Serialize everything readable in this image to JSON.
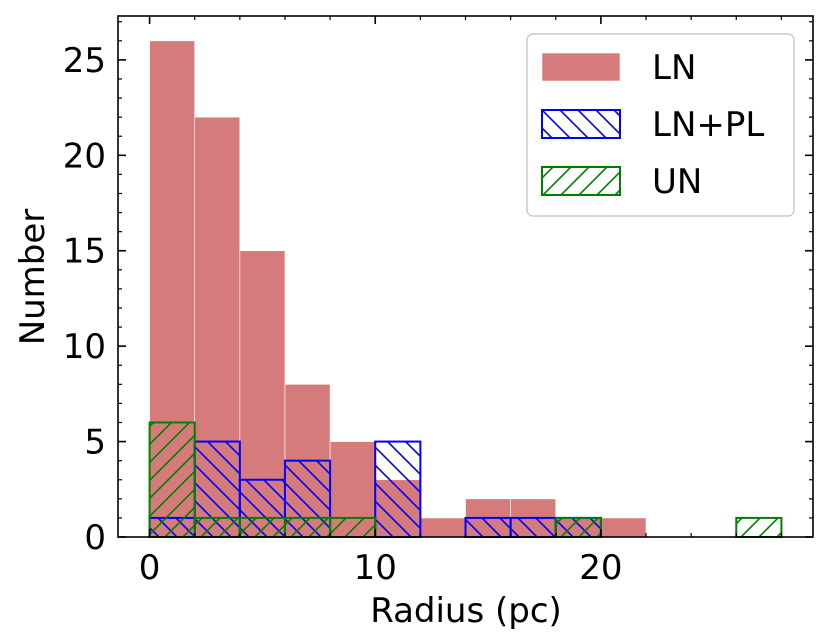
{
  "chart_data": {
    "type": "bar",
    "title": "",
    "xlabel": "Radius (pc)",
    "ylabel": "Number",
    "xlim": [
      -1.4,
      29.4
    ],
    "ylim": [
      0,
      27.3
    ],
    "xticks": [
      0,
      10,
      20
    ],
    "yticks": [
      0,
      5,
      10,
      15,
      20,
      25
    ],
    "bin_width": 2,
    "bin_edges": [
      0,
      2,
      4,
      6,
      8,
      10,
      12,
      14,
      16,
      18,
      20,
      22,
      24,
      26,
      28
    ],
    "grid": false,
    "legend_position": "top-right",
    "series": [
      {
        "name": "LN",
        "style": "filled",
        "color": "#d67b7b",
        "values": [
          26,
          22,
          15,
          8,
          5,
          3,
          1,
          2,
          2,
          1,
          1,
          0,
          0,
          0
        ]
      },
      {
        "name": "LN+PL",
        "style": "hatch-backslash",
        "color": "#0000ff",
        "values": [
          1,
          5,
          3,
          4,
          0,
          5,
          0,
          1,
          1,
          1,
          0,
          0,
          0,
          0
        ]
      },
      {
        "name": "UN",
        "style": "hatch-slash",
        "color": "#008000",
        "values": [
          6,
          1,
          1,
          1,
          1,
          0,
          0,
          0,
          0,
          1,
          0,
          0,
          0,
          1
        ]
      }
    ]
  }
}
